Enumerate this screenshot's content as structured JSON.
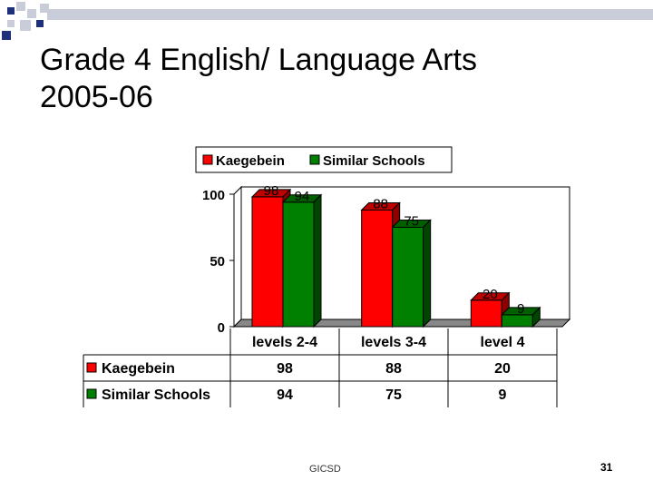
{
  "slide": {
    "title_line1": "Grade 4 English/ Language Arts",
    "title_line2": "2005-06",
    "footer": "GICSD",
    "page_number": "31"
  },
  "colors": {
    "kaegebein": "#ff0000",
    "similar_schools": "#008000",
    "deco_light": "#c9cdda",
    "deco_dark": "#1f2f7a"
  },
  "chart_data": {
    "type": "bar",
    "title": "",
    "categories": [
      "levels 2-4",
      "levels 3-4",
      "level 4"
    ],
    "series": [
      {
        "name": "Kaegebein",
        "values": [
          98,
          88,
          20
        ],
        "color": "#ff0000"
      },
      {
        "name": "Similar Schools",
        "values": [
          94,
          75,
          9
        ],
        "color": "#008000"
      }
    ],
    "yticks": [
      0,
      50,
      100
    ],
    "ylim": [
      0,
      100
    ],
    "xlabel": "",
    "ylabel": "",
    "legend_placement": "top",
    "data_labels": true,
    "three_d": true,
    "grid": false,
    "data_table": true
  }
}
